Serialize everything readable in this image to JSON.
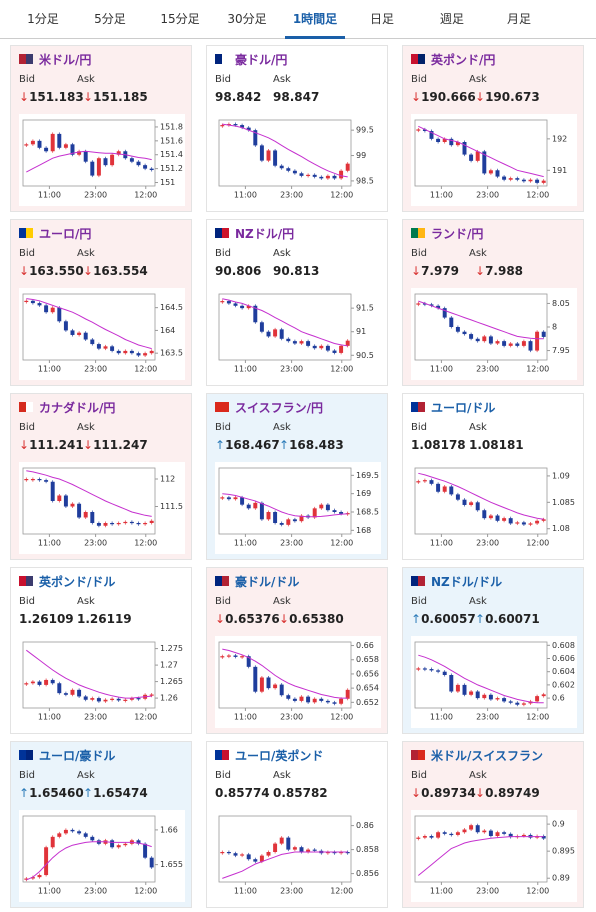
{
  "tabs": [
    "1分足",
    "5分足",
    "15分足",
    "30分足",
    "1時間足",
    "日足",
    "週足",
    "月足"
  ],
  "active_tab": 4,
  "labels": {
    "bid": "Bid",
    "ask": "Ask"
  },
  "x_labels": [
    "11:00",
    "23:00",
    "12:00"
  ],
  "chart_style": {
    "up_color": "#e0333a",
    "down_color": "#1f3d9c",
    "ma_color": "#c530cf",
    "line_color": "#3a8fd0"
  },
  "cards": [
    {
      "name": "米ドル/円",
      "bid": "151.183",
      "ask": "151.185",
      "direction": "down",
      "title_color": "#7a2a9e",
      "flag": [
        "#b22234",
        "#3c3b6e"
      ],
      "chart": {
        "ylim": [
          150.95,
          151.9
        ],
        "yticks": [
          151,
          151.2,
          151.4,
          151.6,
          151.8
        ],
        "close": [
          151.55,
          151.6,
          151.5,
          151.45,
          151.7,
          151.5,
          151.55,
          151.4,
          151.45,
          151.3,
          151.1,
          151.35,
          151.25,
          151.4,
          151.45,
          151.35,
          151.3,
          151.25,
          151.2,
          151.18
        ],
        "ma": [
          151.15,
          151.2,
          151.25,
          151.3,
          151.35,
          151.38,
          151.4,
          151.42,
          151.44,
          151.45,
          151.44,
          151.43,
          151.42,
          151.42,
          151.41,
          151.4,
          151.38,
          151.36,
          151.35,
          151.33
        ]
      }
    },
    {
      "name": "豪ドル/円",
      "bid": "98.842",
      "ask": "98.847",
      "direction": null,
      "title_color": "#7a2a9e",
      "flag": [
        "#00247d",
        "#ffffff"
      ],
      "chart": {
        "ylim": [
          98.4,
          99.7
        ],
        "yticks": [
          98.5,
          99,
          99.5
        ],
        "close": [
          99.6,
          99.62,
          99.6,
          99.55,
          99.5,
          99.2,
          98.9,
          99.1,
          98.8,
          98.75,
          98.7,
          98.65,
          98.6,
          98.62,
          98.58,
          98.55,
          98.6,
          98.55,
          98.7,
          98.84
        ],
        "ma": [
          99.62,
          99.6,
          99.58,
          99.55,
          99.5,
          99.45,
          99.4,
          99.35,
          99.28,
          99.2,
          99.12,
          99.05,
          98.98,
          98.9,
          98.83,
          98.76,
          98.7,
          98.65,
          98.6,
          98.58
        ]
      }
    },
    {
      "name": "英ポンド/円",
      "bid": "190.666",
      "ask": "190.673",
      "direction": "down",
      "title_color": "#7a2a9e",
      "flag": [
        "#c8102e",
        "#012169"
      ],
      "chart": {
        "ylim": [
          190.5,
          192.6
        ],
        "yticks": [
          191,
          192
        ],
        "close": [
          192.3,
          192.25,
          192,
          191.9,
          192,
          191.8,
          191.9,
          191.5,
          191.3,
          191.6,
          190.9,
          191,
          190.8,
          190.7,
          190.75,
          190.7,
          190.65,
          190.7,
          190.6,
          190.67
        ],
        "ma": [
          192.4,
          192.3,
          192.2,
          192.1,
          192,
          191.95,
          191.9,
          191.8,
          191.7,
          191.6,
          191.5,
          191.4,
          191.3,
          191.2,
          191.1,
          191,
          190.95,
          190.9,
          190.85,
          190.8
        ]
      }
    },
    {
      "name": "ユーロ/円",
      "bid": "163.550",
      "ask": "163.554",
      "direction": "down",
      "title_color": "#7a2a9e",
      "flag": [
        "#003399",
        "#ffcc00"
      ],
      "chart": {
        "ylim": [
          163.35,
          164.8
        ],
        "yticks": [
          163.5,
          164,
          164.5
        ],
        "close": [
          164.65,
          164.6,
          164.55,
          164.4,
          164.5,
          164.2,
          164,
          163.9,
          163.95,
          163.8,
          163.7,
          163.6,
          163.65,
          163.55,
          163.5,
          163.55,
          163.5,
          163.45,
          163.5,
          163.55
        ],
        "ma": [
          164.7,
          164.68,
          164.65,
          164.6,
          164.55,
          164.5,
          164.45,
          164.4,
          164.33,
          164.25,
          164.18,
          164.1,
          164.02,
          163.95,
          163.88,
          163.8,
          163.74,
          163.68,
          163.64,
          163.6
        ]
      }
    },
    {
      "name": "NZドル/円",
      "bid": "90.806",
      "ask": "90.813",
      "direction": null,
      "title_color": "#7a2a9e",
      "flag": [
        "#00247d",
        "#cc142b"
      ],
      "chart": {
        "ylim": [
          90.4,
          91.8
        ],
        "yticks": [
          90.5,
          91,
          91.5
        ],
        "close": [
          91.65,
          91.6,
          91.55,
          91.5,
          91.55,
          91.2,
          91,
          90.9,
          91.05,
          90.85,
          90.8,
          90.75,
          90.8,
          90.7,
          90.65,
          90.7,
          90.6,
          90.55,
          90.7,
          90.81
        ],
        "ma": [
          91.7,
          91.67,
          91.63,
          91.6,
          91.55,
          91.5,
          91.45,
          91.38,
          91.3,
          91.23,
          91.15,
          91.08,
          91,
          90.95,
          90.9,
          90.85,
          90.8,
          90.75,
          90.72,
          90.7
        ]
      }
    },
    {
      "name": "ランド/円",
      "bid": "7.979",
      "ask": "7.988",
      "direction": "down",
      "title_color": "#7a2a9e",
      "flag": [
        "#007a4d",
        "#ffb612"
      ],
      "chart": {
        "ylim": [
          7.93,
          8.07
        ],
        "yticks": [
          7.95,
          8,
          8.05
        ],
        "close": [
          8.05,
          8.048,
          8.045,
          8.04,
          8.02,
          8,
          7.99,
          7.985,
          7.975,
          7.97,
          7.98,
          7.965,
          7.97,
          7.96,
          7.965,
          7.96,
          7.97,
          7.95,
          7.99,
          7.979
        ],
        "ma": [
          8.055,
          8.05,
          8.045,
          8.04,
          8.035,
          8.03,
          8.025,
          8.02,
          8.015,
          8.01,
          8.005,
          8,
          7.995,
          7.99,
          7.985,
          7.98,
          7.978,
          7.976,
          7.975,
          7.975
        ]
      }
    },
    {
      "name": "カナダドル/円",
      "bid": "111.241",
      "ask": "111.247",
      "direction": "down",
      "title_color": "#7a2a9e",
      "flag": [
        "#d52b1e",
        "#ffffff"
      ],
      "chart": {
        "ylim": [
          111,
          112.2
        ],
        "yticks": [
          111.5,
          112
        ],
        "close": [
          112,
          112,
          111.98,
          111.95,
          111.6,
          111.7,
          111.5,
          111.55,
          111.3,
          111.4,
          111.2,
          111.15,
          111.2,
          111.18,
          111.2,
          111.22,
          111.2,
          111.18,
          111.2,
          111.24
        ],
        "ma": [
          112.15,
          112.13,
          112.1,
          112.07,
          112.03,
          112,
          111.95,
          111.9,
          111.84,
          111.78,
          111.72,
          111.66,
          111.6,
          111.55,
          111.5,
          111.45,
          111.4,
          111.37,
          111.34,
          111.32
        ]
      }
    },
    {
      "name": "スイスフラン/円",
      "bid": "168.467",
      "ask": "168.483",
      "direction": "up",
      "title_color": "#7a2a9e",
      "flag": [
        "#da291c",
        "#da291c"
      ],
      "chart": {
        "ylim": [
          167.9,
          169.7
        ],
        "yticks": [
          168,
          168.5,
          169,
          169.5
        ],
        "close": [
          168.9,
          168.85,
          168.9,
          168.7,
          168.6,
          168.75,
          168.3,
          168.5,
          168.2,
          168.15,
          168.3,
          168.25,
          168.4,
          168.35,
          168.6,
          168.7,
          168.55,
          168.5,
          168.45,
          168.47
        ],
        "ma": [
          169,
          168.98,
          168.95,
          168.9,
          168.85,
          168.8,
          168.73,
          168.66,
          168.58,
          168.5,
          168.44,
          168.4,
          168.38,
          168.37,
          168.37,
          168.38,
          168.4,
          168.42,
          168.44,
          168.45
        ]
      }
    },
    {
      "name": "ユーロ/ドル",
      "bid": "1.08178",
      "ask": "1.08181",
      "direction": null,
      "title_color": "#1a5fa8",
      "flag": [
        "#003399",
        "#b22234"
      ],
      "chart": {
        "ylim": [
          1.079,
          1.0915
        ],
        "yticks": [
          1.08,
          1.085,
          1.09
        ],
        "close": [
          1.089,
          1.0892,
          1.0885,
          1.087,
          1.088,
          1.0865,
          1.0855,
          1.0845,
          1.085,
          1.0835,
          1.082,
          1.0825,
          1.0815,
          1.082,
          1.081,
          1.0812,
          1.0808,
          1.081,
          1.0815,
          1.08178
        ],
        "ma": [
          1.0905,
          1.0902,
          1.0898,
          1.0894,
          1.089,
          1.0885,
          1.088,
          1.0874,
          1.0868,
          1.0862,
          1.0856,
          1.085,
          1.0845,
          1.084,
          1.0835,
          1.083,
          1.0826,
          1.0823,
          1.082,
          1.0818
        ]
      }
    },
    {
      "name": "英ポンド/ドル",
      "bid": "1.26109",
      "ask": "1.26119",
      "direction": null,
      "title_color": "#1a5fa8",
      "flag": [
        "#c8102e",
        "#3c3b6e"
      ],
      "chart": {
        "ylim": [
          1.257,
          1.277
        ],
        "yticks": [
          1.26,
          1.265,
          1.27,
          1.275
        ],
        "close": [
          1.2645,
          1.265,
          1.264,
          1.2655,
          1.2645,
          1.2615,
          1.261,
          1.2625,
          1.2605,
          1.2595,
          1.26,
          1.259,
          1.2595,
          1.2598,
          1.2593,
          1.2595,
          1.26,
          1.2598,
          1.261,
          1.26109
        ],
        "ma": [
          1.2745,
          1.273,
          1.2715,
          1.27,
          1.2685,
          1.2672,
          1.266,
          1.265,
          1.264,
          1.2632,
          1.2625,
          1.2618,
          1.2612,
          1.2607,
          1.2603,
          1.26,
          1.26,
          1.2602,
          1.2604,
          1.2606
        ]
      }
    },
    {
      "name": "豪ドル/ドル",
      "bid": "0.65376",
      "ask": "0.65380",
      "direction": "down",
      "title_color": "#1a5fa8",
      "flag": [
        "#00247d",
        "#b22234"
      ],
      "chart": {
        "ylim": [
          0.6512,
          0.6605
        ],
        "yticks": [
          0.652,
          0.654,
          0.656,
          0.658,
          0.66
        ],
        "close": [
          0.6585,
          0.6586,
          0.6584,
          0.6585,
          0.657,
          0.6535,
          0.6555,
          0.654,
          0.6545,
          0.653,
          0.6525,
          0.6522,
          0.6528,
          0.652,
          0.6525,
          0.6522,
          0.652,
          0.6518,
          0.6525,
          0.65376
        ],
        "ma": [
          0.6595,
          0.6593,
          0.659,
          0.6587,
          0.6583,
          0.6578,
          0.6572,
          0.6565,
          0.6558,
          0.6552,
          0.6547,
          0.6543,
          0.654,
          0.6537,
          0.6534,
          0.6531,
          0.6529,
          0.6527,
          0.6526,
          0.6526
        ]
      }
    },
    {
      "name": "NZドル/ドル",
      "bid": "0.60057",
      "ask": "0.60071",
      "direction": "up",
      "title_color": "#1a5fa8",
      "flag": [
        "#00247d",
        "#b22234"
      ],
      "chart": {
        "ylim": [
          0.5985,
          0.6085
        ],
        "yticks": [
          0.6,
          0.602,
          0.604,
          0.606,
          0.608
        ],
        "close": [
          0.6045,
          0.6044,
          0.6042,
          0.604,
          0.6035,
          0.601,
          0.602,
          0.6005,
          0.601,
          0.6,
          0.6005,
          0.5998,
          0.6,
          0.5995,
          0.5993,
          0.599,
          0.5992,
          0.5995,
          0.6003,
          0.60057
        ],
        "ma": [
          0.6065,
          0.6062,
          0.6058,
          0.6053,
          0.6048,
          0.6042,
          0.6036,
          0.603,
          0.6025,
          0.602,
          0.6016,
          0.6012,
          0.6008,
          0.6004,
          0.6001,
          0.5998,
          0.5996,
          0.5994,
          0.5993,
          0.5993
        ]
      }
    },
    {
      "name": "ユーロ/豪ドル",
      "bid": "1.65460",
      "ask": "1.65474",
      "direction": "up",
      "title_color": "#1a5fa8",
      "flag": [
        "#003399",
        "#00247d"
      ],
      "chart": {
        "ylim": [
          1.6525,
          1.662
        ],
        "yticks": [
          1.655,
          1.66
        ],
        "close": [
          1.653,
          1.6532,
          1.6535,
          1.6575,
          1.659,
          1.6595,
          1.66,
          1.6598,
          1.6595,
          1.659,
          1.6585,
          1.658,
          1.6585,
          1.6575,
          1.6578,
          1.658,
          1.6585,
          1.658,
          1.656,
          1.6546
        ],
        "ma": [
          1.6528,
          1.6532,
          1.654,
          1.655,
          1.656,
          1.6568,
          1.6574,
          1.6578,
          1.658,
          1.6582,
          1.6583,
          1.6583,
          1.6583,
          1.6582,
          1.6582,
          1.6582,
          1.6582,
          1.6581,
          1.6579,
          1.6576
        ]
      }
    },
    {
      "name": "ユーロ/英ポンド",
      "bid": "0.85774",
      "ask": "0.85782",
      "direction": null,
      "title_color": "#1a5fa8",
      "flag": [
        "#003399",
        "#c8102e"
      ],
      "chart": {
        "ylim": [
          0.8553,
          0.8608
        ],
        "yticks": [
          0.856,
          0.858,
          0.86
        ],
        "close": [
          0.8578,
          0.8577,
          0.8575,
          0.8576,
          0.8572,
          0.857,
          0.8575,
          0.8578,
          0.8585,
          0.859,
          0.858,
          0.8582,
          0.8578,
          0.858,
          0.8579,
          0.8577,
          0.8578,
          0.8577,
          0.8578,
          0.85774
        ],
        "ma": [
          0.8556,
          0.8558,
          0.856,
          0.8562,
          0.8565,
          0.8568,
          0.857,
          0.8572,
          0.8574,
          0.8576,
          0.8577,
          0.8578,
          0.8578,
          0.8578,
          0.8578,
          0.8578,
          0.8578,
          0.8578,
          0.8578,
          0.8578
        ]
      }
    },
    {
      "name": "米ドル/スイスフラン",
      "bid": "0.89734",
      "ask": "0.89749",
      "direction": "down",
      "title_color": "#1a5fa8",
      "flag": [
        "#b22234",
        "#da291c"
      ],
      "chart": {
        "ylim": [
          0.8893,
          0.9015
        ],
        "yticks": [
          0.89,
          0.895,
          0.9
        ],
        "close": [
          0.8975,
          0.8978,
          0.8975,
          0.8985,
          0.8982,
          0.898,
          0.8985,
          0.899,
          0.8998,
          0.8985,
          0.8988,
          0.8978,
          0.8985,
          0.8982,
          0.8976,
          0.8978,
          0.898,
          0.8975,
          0.8978,
          0.89734
        ],
        "ma": [
          0.8905,
          0.8915,
          0.8925,
          0.8935,
          0.8945,
          0.8955,
          0.896,
          0.8965,
          0.8968,
          0.897,
          0.8972,
          0.8974,
          0.8975,
          0.8976,
          0.8977,
          0.8977,
          0.8977,
          0.8977,
          0.8977,
          0.8977
        ]
      }
    }
  ]
}
